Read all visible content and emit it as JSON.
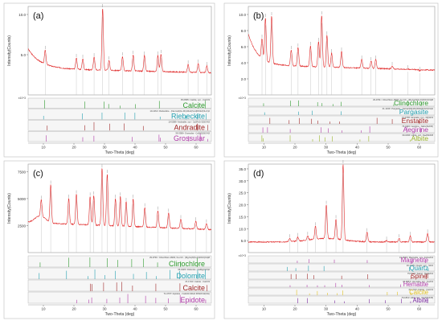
{
  "chart_data": [
    {
      "type": "xrd_pattern",
      "panel_label": "(a)",
      "xlabel": "Two-Theta (deg)",
      "ylabel": "Intensity(Counts)",
      "xlim": [
        5,
        65
      ],
      "ylim": [
        0,
        11
      ],
      "x_ticks": [
        10,
        20,
        30,
        40,
        50,
        60
      ],
      "y_ticks": [
        5,
        10
      ],
      "y_tick_labels": [
        "5.0",
        "10.0"
      ],
      "y_unit_label": "x10^3",
      "peaks": [
        {
          "x": 10.6,
          "y": 5.6
        },
        {
          "x": 20.8,
          "y": 4.6
        },
        {
          "x": 22.9,
          "y": 4.5
        },
        {
          "x": 26.6,
          "y": 4.7
        },
        {
          "x": 29.4,
          "y": 10.8
        },
        {
          "x": 31.5,
          "y": 4.3
        },
        {
          "x": 35.9,
          "y": 4.8
        },
        {
          "x": 39.4,
          "y": 5.0
        },
        {
          "x": 43.1,
          "y": 4.9
        },
        {
          "x": 47.5,
          "y": 4.9
        },
        {
          "x": 48.5,
          "y": 5.1
        },
        {
          "x": 57.4,
          "y": 3.8
        },
        {
          "x": 60.7,
          "y": 3.9
        },
        {
          "x": 63.5,
          "y": 3.6
        }
      ],
      "phases": [
        {
          "pdf": "05-0586> Calcite, syn - CaCO3",
          "name": "Calcite",
          "color": "#2d9a2d"
        },
        {
          "pdf": "19-1061> Riebeckite - (Na,Ca)2(Fe,Mn)3Fe2(Si,Al)8O22(OH,F)2",
          "name": "Riebeckite",
          "color": "#22a0b0"
        },
        {
          "pdf": "10-0288> Andradite, syn - Ca3Fe2+3(SiO4)3",
          "name": "Andradite",
          "color": "#a02828"
        },
        {
          "pdf": "39-0368> Grossular - Ca3Al2(SiO4)3",
          "name": "Grossular",
          "color": "#b03aa8"
        }
      ]
    },
    {
      "type": "xrd_pattern",
      "panel_label": "(b)",
      "xlabel": "Two-Theta (deg)",
      "ylabel": "Intensity(Counts)",
      "xlim": [
        5,
        65
      ],
      "ylim": [
        0,
        11
      ],
      "x_ticks": [
        10,
        20,
        30,
        40,
        50,
        60
      ],
      "y_ticks": [
        2,
        4,
        6,
        8,
        10
      ],
      "y_tick_labels": [
        "2.0",
        "4.0",
        "6.0",
        "8.0",
        "10.0"
      ],
      "y_unit_label": "x10^3",
      "peaks": [
        {
          "x": 9.4,
          "y": 7.0
        },
        {
          "x": 10.5,
          "y": 9.6
        },
        {
          "x": 12.5,
          "y": 9.8
        },
        {
          "x": 18.8,
          "y": 5.6
        },
        {
          "x": 21.0,
          "y": 5.9
        },
        {
          "x": 25.0,
          "y": 6.1
        },
        {
          "x": 27.6,
          "y": 6.6
        },
        {
          "x": 28.6,
          "y": 9.9
        },
        {
          "x": 30.3,
          "y": 7.4
        },
        {
          "x": 31.8,
          "y": 5.2
        },
        {
          "x": 35.0,
          "y": 5.4
        },
        {
          "x": 41.5,
          "y": 4.4
        },
        {
          "x": 44.5,
          "y": 4.2
        },
        {
          "x": 46.0,
          "y": 4.4
        },
        {
          "x": 51.3,
          "y": 3.6
        },
        {
          "x": 56.4,
          "y": 3.2
        },
        {
          "x": 60.2,
          "y": 3.0
        }
      ],
      "phases": [
        {
          "pdf": "29-0701> Clinochlore-1MIIb, Fe-rich - (Mg,Fe)6(Si,Al)4O10(OH)8",
          "name": "Clinochlore",
          "color": "#2d9a2d"
        },
        {
          "pdf": "41-1430> Pargasite - NaCa2(Mg4Al)(Si6Al2)O22(OH)2",
          "name": "Pargasite",
          "color": "#22a0b0"
        },
        {
          "pdf": "19-0768> Enstatite, syn - MgSiO3",
          "name": "Enstatite",
          "color": "#a02828"
        },
        {
          "pdf": "76-1820> Aegirine - NaFe(Si2O6)",
          "name": "Aegirine",
          "color": "#b03aa8"
        },
        {
          "pdf": "09-0466> Albite, ord - NaAlSi3O8",
          "name": "Albite",
          "color": "#9ab52a"
        }
      ]
    },
    {
      "type": "xrd_pattern",
      "panel_label": "(c)",
      "xlabel": "Two-Theta (deg)",
      "ylabel": "Intensity(Counts)",
      "xlim": [
        5,
        65
      ],
      "ylim": [
        0,
        8200
      ],
      "x_ticks": [
        10,
        20,
        30,
        40,
        50,
        60
      ],
      "y_ticks": [
        2500,
        5000,
        7500
      ],
      "y_tick_labels": [
        "2500",
        "5000",
        "7500"
      ],
      "y_unit_label": "",
      "peaks": [
        {
          "x": 9.3,
          "y": 4900
        },
        {
          "x": 12.4,
          "y": 6300
        },
        {
          "x": 18.3,
          "y": 5000
        },
        {
          "x": 20.8,
          "y": 5400
        },
        {
          "x": 25.3,
          "y": 5200
        },
        {
          "x": 26.5,
          "y": 5300
        },
        {
          "x": 29.2,
          "y": 7800
        },
        {
          "x": 30.9,
          "y": 7300
        },
        {
          "x": 33.6,
          "y": 5000
        },
        {
          "x": 35.2,
          "y": 5200
        },
        {
          "x": 37.1,
          "y": 4700
        },
        {
          "x": 39.4,
          "y": 5000
        },
        {
          "x": 43.2,
          "y": 4200
        },
        {
          "x": 47.5,
          "y": 3900
        },
        {
          "x": 51.0,
          "y": 3700
        },
        {
          "x": 55.0,
          "y": 3100
        },
        {
          "x": 59.9,
          "y": 2900
        },
        {
          "x": 63.4,
          "y": 2700
        }
      ],
      "phases": [
        {
          "pdf": "29-0701> Clinochlore-1MIIb, Fe-rich - (Mg,Fe)6(Si,Al)4O10(OH)8",
          "name": "Clinochlore",
          "color": "#2d9a2d"
        },
        {
          "pdf": "36-0426> Dolomite - CaMg(CO3)2",
          "name": "Dolomite",
          "color": "#22a0b0"
        },
        {
          "pdf": "47-1743> Calcite - CaCO3",
          "name": "Calcite",
          "color": "#a02828"
        },
        {
          "pdf": "71-0707> Epidote - Ca2Al2.04Fe0.96Si3O12(OH)",
          "name": "Epidote",
          "color": "#b03aa8"
        }
      ]
    },
    {
      "type": "xrd_pattern",
      "panel_label": "(d)",
      "xlabel": "Two-Theta (deg)",
      "ylabel": "Intensity(Counts)",
      "xlim": [
        5,
        65
      ],
      "ylim": [
        0,
        37
      ],
      "x_ticks": [
        10,
        20,
        30,
        40,
        50,
        60
      ],
      "y_ticks": [
        5,
        10,
        15,
        20,
        25,
        30,
        35
      ],
      "y_tick_labels": [
        "5.0",
        "10.0",
        "15.0",
        "20.0",
        "25.0",
        "30.0",
        "35.0"
      ],
      "y_unit_label": "x10^3",
      "peaks": [
        {
          "x": 18.3,
          "y": 6.0
        },
        {
          "x": 20.9,
          "y": 6.5
        },
        {
          "x": 24.1,
          "y": 7.0
        },
        {
          "x": 26.6,
          "y": 11.0
        },
        {
          "x": 30.1,
          "y": 20.0
        },
        {
          "x": 33.2,
          "y": 14.0
        },
        {
          "x": 35.5,
          "y": 37.0
        },
        {
          "x": 43.2,
          "y": 8.5
        },
        {
          "x": 49.5,
          "y": 5.0
        },
        {
          "x": 53.5,
          "y": 6.0
        },
        {
          "x": 57.1,
          "y": 7.0
        },
        {
          "x": 62.7,
          "y": 8.0
        }
      ],
      "phases": [
        {
          "pdf": "19-0629> Magnetite, syn - FeFe2O4",
          "name": "Magnetite",
          "color": "#b03aa8"
        },
        {
          "pdf": "46-1045> Quartz, syn - SiO2",
          "name": "Quartz",
          "color": "#22a0b0"
        },
        {
          "pdf": "75-0710> Spinel - MgAl2O4",
          "name": "Spinel",
          "color": "#a02828"
        },
        {
          "pdf": "33-0664> Hematite, syn - Fe2O3",
          "name": "Hematite",
          "color": "#b03aa8"
        },
        {
          "pdf": "47-1743> Calcite - CaCO3",
          "name": "Calcite",
          "color": "#e0c020"
        },
        {
          "pdf": "76-1819> Albite low - Na(AlSi3O8)",
          "name": "Albite",
          "color": "#7a2aa0"
        }
      ]
    }
  ]
}
